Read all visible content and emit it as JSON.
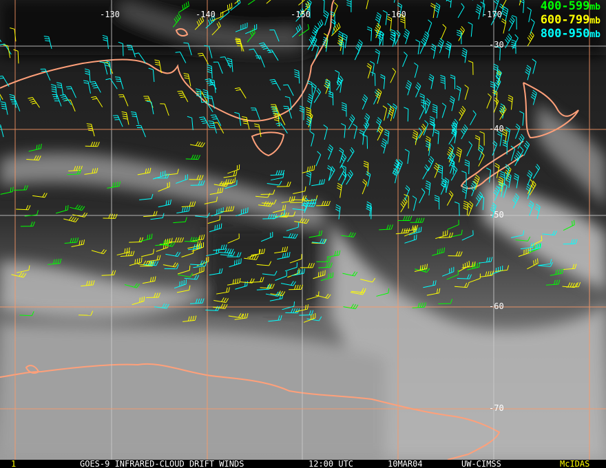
{
  "map": {
    "longitude_labels": [
      "-130",
      "-140",
      "-150",
      "-160",
      "-170"
    ],
    "latitude_labels": [
      "-30",
      "-40",
      "-50",
      "-60",
      "-70"
    ],
    "grid_color": "#ff9966",
    "coastline_color": "#ffa07a"
  },
  "legend": [
    {
      "range": "400-599",
      "unit": "mb",
      "color": "#00ff00"
    },
    {
      "range": "600-799",
      "unit": "mb",
      "color": "#ffff00"
    },
    {
      "range": "800-950",
      "unit": "mb",
      "color": "#00ffff"
    }
  ],
  "footer": {
    "frame": "1",
    "title": "GOES-9 INFRARED-CLOUD DRIFT WINDS",
    "time": "12:00 UTC",
    "date": "10MAR04",
    "source": "UW-CIMSS",
    "software": "McIDAS",
    "frame_color": "#ffff00",
    "software_color": "#ffff00"
  }
}
